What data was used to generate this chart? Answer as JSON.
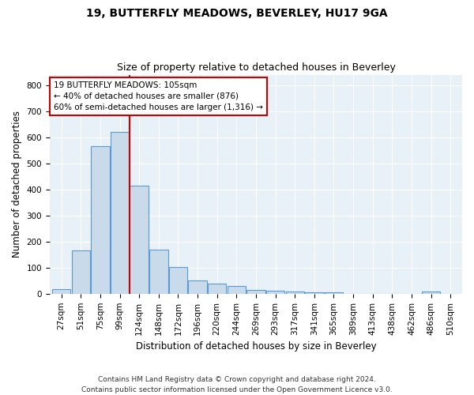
{
  "title": "19, BUTTERFLY MEADOWS, BEVERLEY, HU17 9GA",
  "subtitle": "Size of property relative to detached houses in Beverley",
  "xlabel": "Distribution of detached houses by size in Beverley",
  "ylabel": "Number of detached properties",
  "bar_color": "#c9daea",
  "bar_edge_color": "#5b9bd5",
  "bg_color": "#e8f0f8",
  "grid_color": "white",
  "annotation_box_color": "#cc0000",
  "vline_color": "#cc0000",
  "categories": [
    "27sqm",
    "51sqm",
    "75sqm",
    "99sqm",
    "124sqm",
    "148sqm",
    "172sqm",
    "196sqm",
    "220sqm",
    "244sqm",
    "269sqm",
    "293sqm",
    "317sqm",
    "341sqm",
    "365sqm",
    "389sqm",
    "413sqm",
    "438sqm",
    "462sqm",
    "486sqm",
    "510sqm"
  ],
  "values": [
    18,
    165,
    565,
    622,
    413,
    170,
    103,
    52,
    40,
    30,
    15,
    12,
    9,
    5,
    5,
    0,
    0,
    0,
    0,
    8,
    0
  ],
  "ylim": [
    0,
    840
  ],
  "yticks": [
    0,
    100,
    200,
    300,
    400,
    500,
    600,
    700,
    800
  ],
  "vline_position": 3.5,
  "annotation_line1": "19 BUTTERFLY MEADOWS: 105sqm",
  "annotation_line2": "← 40% of detached houses are smaller (876)",
  "annotation_line3": "60% of semi-detached houses are larger (1,316) →",
  "footer": "Contains HM Land Registry data © Crown copyright and database right 2024.\nContains public sector information licensed under the Open Government Licence v3.0.",
  "title_fontsize": 10,
  "subtitle_fontsize": 9,
  "axis_label_fontsize": 8.5,
  "tick_fontsize": 7.5,
  "annotation_fontsize": 7.5,
  "footer_fontsize": 6.5
}
